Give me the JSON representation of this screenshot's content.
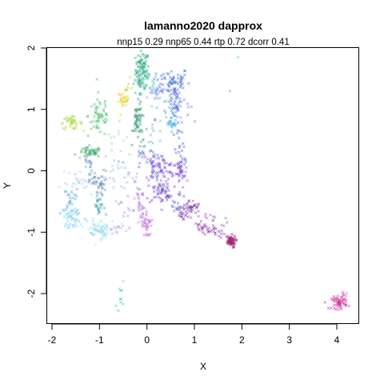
{
  "chart_data": {
    "type": "scatter",
    "title": "lamanno2020 dapprox",
    "subtitle": "nnp15 0.29 nnp65 0.44 rtp 0.72 dcorr 0.41",
    "xlabel": "X",
    "ylabel": "Y",
    "xlim": [
      -2.1,
      4.5
    ],
    "ylim": [
      -2.5,
      2.0
    ],
    "xticks": [
      -2,
      -1,
      0,
      1,
      2,
      3,
      4
    ],
    "yticks": [
      -2,
      -1,
      0,
      1,
      2
    ],
    "grid": false,
    "legend": "none",
    "clusters": [
      {
        "cx": -0.1,
        "cy": 1.65,
        "sx": 0.07,
        "sy": 0.15,
        "n": 70,
        "color": "#1aa37a"
      },
      {
        "cx": 0.0,
        "cy": 1.45,
        "sx": 0.12,
        "sy": 0.1,
        "n": 30,
        "color": "#55c8a0"
      },
      {
        "cx": 0.5,
        "cy": 1.45,
        "sx": 0.2,
        "sy": 0.12,
        "n": 70,
        "color": "#3f68d6"
      },
      {
        "cx": 0.6,
        "cy": 1.1,
        "sx": 0.15,
        "sy": 0.15,
        "n": 40,
        "color": "#5a7ee0"
      },
      {
        "cx": 0.2,
        "cy": 1.25,
        "sx": 0.1,
        "sy": 0.08,
        "n": 20,
        "color": "#7aa0e8"
      },
      {
        "cx": 0.55,
        "cy": 0.85,
        "sx": 0.05,
        "sy": 0.1,
        "n": 25,
        "color": "#2aa8e0"
      },
      {
        "cx": -0.5,
        "cy": 1.15,
        "sx": 0.05,
        "sy": 0.07,
        "n": 25,
        "color": "#e8d01a"
      },
      {
        "cx": -0.4,
        "cy": 1.35,
        "sx": 0.05,
        "sy": 0.08,
        "n": 8,
        "color": "#9ad820"
      },
      {
        "cx": -1.6,
        "cy": 0.78,
        "sx": 0.12,
        "sy": 0.05,
        "n": 40,
        "color": "#a8d83a"
      },
      {
        "cx": -1.0,
        "cy": 0.9,
        "sx": 0.12,
        "sy": 0.18,
        "n": 55,
        "color": "#40b868"
      },
      {
        "cx": -1.2,
        "cy": 0.3,
        "sx": 0.12,
        "sy": 0.04,
        "n": 40,
        "color": "#30a860"
      },
      {
        "cx": -0.2,
        "cy": 0.8,
        "sx": 0.05,
        "sy": 0.15,
        "n": 35,
        "color": "#1a8a5a"
      },
      {
        "cx": -0.6,
        "cy": 0.5,
        "sx": 0.15,
        "sy": 0.3,
        "n": 20,
        "color": "#88e0a8"
      },
      {
        "cx": 0.15,
        "cy": 0.55,
        "sx": 0.1,
        "sy": 0.2,
        "n": 25,
        "color": "#6fa8c8"
      },
      {
        "cx": 0.25,
        "cy": 0.05,
        "sx": 0.18,
        "sy": 0.12,
        "n": 75,
        "color": "#7c4ad8"
      },
      {
        "cx": 0.7,
        "cy": -0.05,
        "sx": 0.08,
        "sy": 0.12,
        "n": 35,
        "color": "#8a50e0"
      },
      {
        "cx": 0.35,
        "cy": -0.35,
        "sx": 0.2,
        "sy": 0.1,
        "n": 50,
        "color": "#6a3cc8"
      },
      {
        "cx": 0.9,
        "cy": -0.6,
        "sx": 0.12,
        "sy": 0.06,
        "n": 40,
        "color": "#7a3aa8"
      },
      {
        "cx": 1.4,
        "cy": -0.85,
        "sx": 0.12,
        "sy": 0.1,
        "n": 30,
        "color": "#a050b8"
      },
      {
        "cx": 1.75,
        "cy": -1.15,
        "sx": 0.06,
        "sy": 0.05,
        "n": 55,
        "color": "#9c1c6c"
      },
      {
        "cx": 0.0,
        "cy": -0.9,
        "sx": 0.05,
        "sy": 0.1,
        "n": 25,
        "color": "#c060d8"
      },
      {
        "cx": -0.3,
        "cy": -0.6,
        "sx": 0.15,
        "sy": 0.15,
        "n": 25,
        "color": "#b080d0"
      },
      {
        "cx": -1.0,
        "cy": -0.2,
        "sx": 0.1,
        "sy": 0.1,
        "n": 35,
        "color": "#5a88b8"
      },
      {
        "cx": -1.0,
        "cy": -0.6,
        "sx": 0.06,
        "sy": 0.12,
        "n": 25,
        "color": "#3a98a8"
      },
      {
        "cx": -1.6,
        "cy": -0.5,
        "sx": 0.1,
        "sy": 0.15,
        "n": 30,
        "color": "#4aa8d8"
      },
      {
        "cx": -1.6,
        "cy": -0.75,
        "sx": 0.08,
        "sy": 0.08,
        "n": 25,
        "color": "#70d0f0"
      },
      {
        "cx": -1.0,
        "cy": -0.95,
        "sx": 0.18,
        "sy": 0.08,
        "n": 50,
        "color": "#a0e8f0"
      },
      {
        "cx": -0.55,
        "cy": -0.1,
        "sx": 0.2,
        "sy": 0.15,
        "n": 25,
        "color": "#9ab0d8"
      },
      {
        "cx": -1.4,
        "cy": -0.2,
        "sx": 0.2,
        "sy": 0.12,
        "n": 25,
        "color": "#b8c8e8"
      },
      {
        "cx": -0.55,
        "cy": -2.05,
        "sx": 0.04,
        "sy": 0.08,
        "n": 8,
        "color": "#30c8a0"
      },
      {
        "cx": 4.05,
        "cy": -2.15,
        "sx": 0.08,
        "sy": 0.05,
        "n": 50,
        "color": "#c82a90"
      },
      {
        "cx": 4.15,
        "cy": -2.05,
        "sx": 0.05,
        "sy": 0.04,
        "n": 15,
        "color": "#e060b0"
      }
    ],
    "trajectories": [
      {
        "from": [
          -0.15,
          0.35
        ],
        "to": [
          0.7,
          -0.7
        ],
        "n": 40,
        "spread": 0.05,
        "color": "#5a6ad0"
      },
      {
        "from": [
          0.7,
          -0.7
        ],
        "to": [
          1.75,
          -1.15
        ],
        "n": 40,
        "spread": 0.04,
        "color": "#8a3aa8"
      },
      {
        "from": [
          0.6,
          1.5
        ],
        "to": [
          0.75,
          -0.1
        ],
        "n": 45,
        "spread": 0.05,
        "color": "#4a58d8"
      },
      {
        "from": [
          -0.2,
          1.7
        ],
        "to": [
          -0.1,
          0.4
        ],
        "n": 35,
        "spread": 0.05,
        "color": "#2a9a78"
      },
      {
        "from": [
          -1.3,
          0.3
        ],
        "to": [
          -1.1,
          -0.2
        ],
        "n": 25,
        "spread": 0.05,
        "color": "#6a90c0"
      },
      {
        "from": [
          -1.6,
          -0.8
        ],
        "to": [
          -0.9,
          -1.0
        ],
        "n": 30,
        "spread": 0.06,
        "color": "#90d8f0"
      },
      {
        "from": [
          -0.2,
          -0.2
        ],
        "to": [
          0.0,
          -0.95
        ],
        "n": 30,
        "spread": 0.05,
        "color": "#b070e0"
      },
      {
        "from": [
          -1.2,
          -0.95
        ],
        "to": [
          -0.4,
          -0.95
        ],
        "n": 20,
        "spread": 0.05,
        "color": "#b8a0e0"
      }
    ],
    "outliers": [
      {
        "x": 1.92,
        "y": 1.85,
        "color": "#40d0c0"
      },
      {
        "x": 1.75,
        "y": 1.3,
        "color": "#40b0e0"
      },
      {
        "x": -0.5,
        "y": -1.8,
        "color": "#60d8b0"
      },
      {
        "x": -0.65,
        "y": -2.2,
        "color": "#40c8a0"
      },
      {
        "x": 0.1,
        "y": 1.05,
        "color": "#60c8d0"
      },
      {
        "x": 1.1,
        "y": -0.95,
        "color": "#a050b8"
      }
    ]
  }
}
